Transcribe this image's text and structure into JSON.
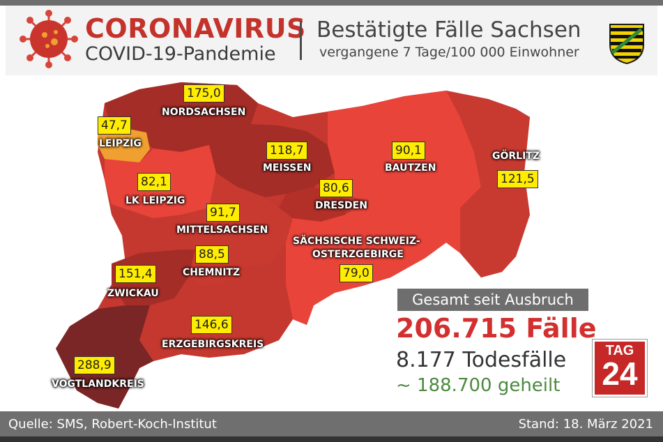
{
  "header": {
    "title": "CORONAVIRUS",
    "subtitle": "COVID-19-Pandemie",
    "right_title": "Bestätigte Fälle Sachsen",
    "right_subtitle": "vergangene 7 Tage/100 000 Einwohner"
  },
  "colors": {
    "title_red": "#c4332b",
    "region_light": "#e8443a",
    "region_mid": "#c83a30",
    "region_dark": "#a52d27",
    "region_darkest": "#7a2626",
    "leipzig_orange": "#f0a030",
    "label_yellow": "#ffec00",
    "cases_red": "#d32f2f",
    "healed_green": "#4b8a3e"
  },
  "districts": [
    {
      "name": "NORDSACHSEN",
      "value": "175,0"
    },
    {
      "name": "LEIPZIG",
      "value": "47,7"
    },
    {
      "name": "MEISSEN",
      "value": "118,7"
    },
    {
      "name": "BAUTZEN",
      "value": "90,1"
    },
    {
      "name": "GÖRLITZ",
      "value": "121,5"
    },
    {
      "name": "LK LEIPZIG",
      "value": "82,1"
    },
    {
      "name": "DRESDEN",
      "value": "80,6"
    },
    {
      "name": "MITTELSACHSEN",
      "value": "91,7"
    },
    {
      "name": "SÄCHSISCHE SCHWEIZ-",
      "name2": "OSTERZGEBIRGE",
      "value": "79,0"
    },
    {
      "name": "CHEMNITZ",
      "value": "88,5"
    },
    {
      "name": "ZWICKAU",
      "value": "151,4"
    },
    {
      "name": "ERZGEBIRGSKREIS",
      "value": "146,6"
    },
    {
      "name": "VOGTLANDKREIS",
      "value": "288,9"
    }
  ],
  "totals": {
    "box_label": "Gesamt seit Ausbruch",
    "cases": "206.715 Fälle",
    "deaths": "8.177 Todesfälle",
    "healed": "~ 188.700 geheilt"
  },
  "logo": {
    "line1": "TAG",
    "line2": "24"
  },
  "footer": {
    "source": "Quelle: SMS, Robert-Koch-Institut",
    "date": "Stand: 18. März 2021"
  },
  "icons": {
    "virus": "coronavirus-icon",
    "crest": "saxony-coat-of-arms-icon"
  }
}
